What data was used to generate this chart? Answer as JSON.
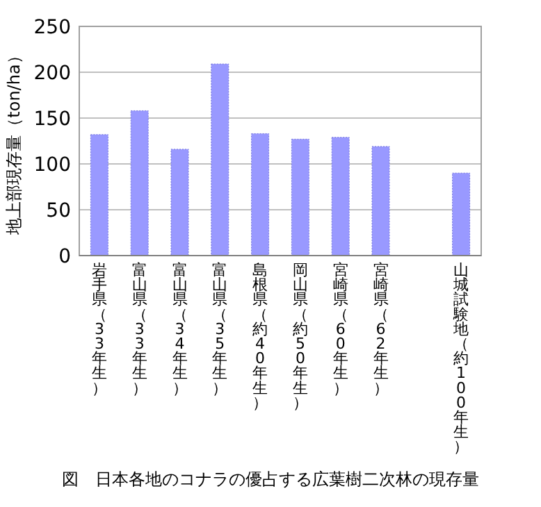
{
  "chart_data": {
    "type": "bar",
    "title": "図　日本各地のコナラの優占する広葉樹二次林の現存量",
    "ylabel": "地上部現存量（ton/ha）",
    "categories": [
      "岩手県（33年生）",
      "富山県（33年生）",
      "富山県（34年生）",
      "富山県（35年生）",
      "島根県（約40年生）",
      "岡山県（約50年生）",
      "宮崎県（60年生）",
      "宮崎県（62年生）",
      null,
      "山城試験地（約100年生）"
    ],
    "values": [
      132,
      158,
      116,
      209,
      133,
      127,
      129,
      119,
      null,
      90
    ],
    "color": "#9999ff",
    "ylim": [
      0,
      250
    ],
    "yticks": [
      0,
      50,
      100,
      150,
      200,
      250
    ],
    "grid": "y"
  }
}
